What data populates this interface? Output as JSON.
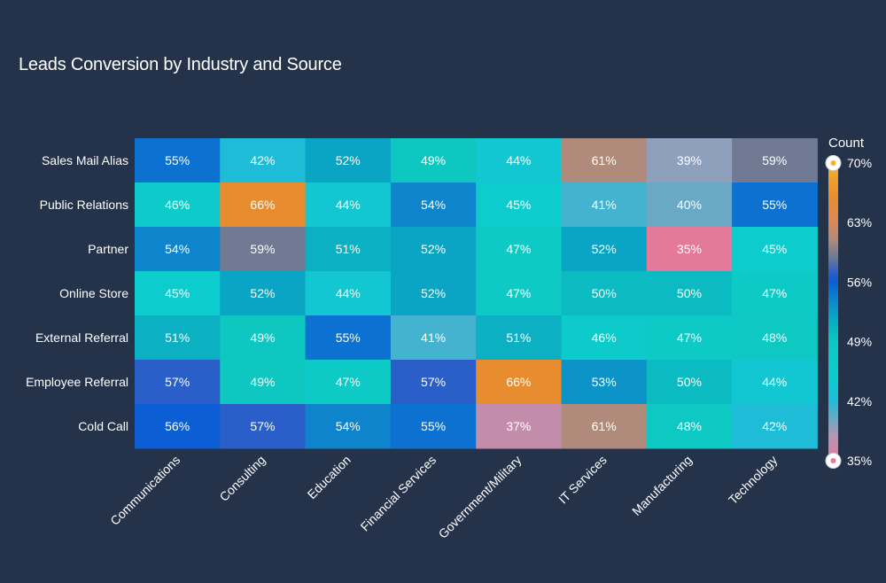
{
  "chart_data": {
    "type": "heatmap",
    "title": "Leads Conversion by Industry and Source",
    "rows": [
      "Sales Mail Alias",
      "Public Relations",
      "Partner",
      "Online Store",
      "External Referral",
      "Employee Referral",
      "Cold Call"
    ],
    "columns": [
      "Communications",
      "Consulting",
      "Education",
      "Financial Services",
      "Government/Military",
      "IT Services",
      "Manufacturing",
      "Technology"
    ],
    "values": [
      [
        55,
        42,
        52,
        49,
        44,
        61,
        39,
        59
      ],
      [
        46,
        66,
        44,
        54,
        45,
        41,
        40,
        55
      ],
      [
        54,
        59,
        51,
        52,
        47,
        52,
        35,
        45
      ],
      [
        45,
        52,
        44,
        52,
        47,
        50,
        50,
        47
      ],
      [
        51,
        49,
        55,
        41,
        51,
        46,
        47,
        48
      ],
      [
        57,
        49,
        47,
        57,
        66,
        53,
        50,
        44
      ],
      [
        56,
        57,
        54,
        55,
        37,
        61,
        48,
        42
      ]
    ],
    "value_suffix": "%",
    "colorbar": {
      "title": "Count",
      "min": 35,
      "max": 70,
      "ticks": [
        70,
        63,
        56,
        49,
        42,
        35
      ],
      "tick_labels": [
        "70%",
        "63%",
        "56%",
        "49%",
        "42%",
        "35%"
      ],
      "colorscale": [
        [
          35,
          "#e5799a"
        ],
        [
          38,
          "#b496b4"
        ],
        [
          42,
          "#1fbcd8"
        ],
        [
          45,
          "#0ccccd"
        ],
        [
          49,
          "#0dc7c0"
        ],
        [
          52,
          "#0aa4c4"
        ],
        [
          54,
          "#0d84cc"
        ],
        [
          56,
          "#0b5ed3"
        ],
        [
          57,
          "#2a5ec9"
        ],
        [
          59,
          "#707b93"
        ],
        [
          61,
          "#b08a7a"
        ],
        [
          63,
          "#d8895a"
        ],
        [
          66,
          "#e78d30"
        ],
        [
          70,
          "#f5b12c"
        ]
      ]
    }
  }
}
